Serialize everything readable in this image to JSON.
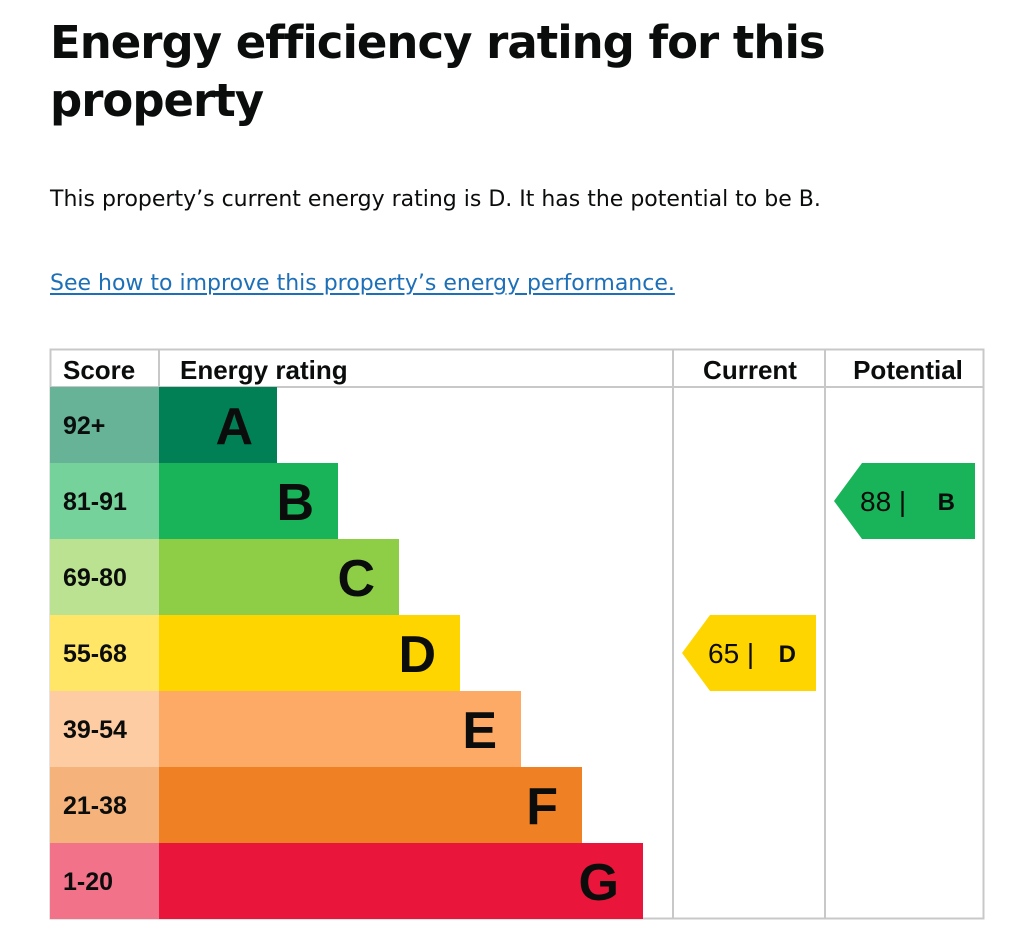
{
  "page": {
    "title": "Energy efficiency rating for this property",
    "intro": "This property’s current energy rating is D. It has the potential to be B.",
    "link_text": "See how to improve this property’s energy performance."
  },
  "colors": {
    "text": "#0b0c0c",
    "link": "#1d70b8",
    "border": "#c8c8c8"
  },
  "chart_data": {
    "type": "bar",
    "title": "Energy efficiency rating",
    "headers": {
      "score": "Score",
      "rating": "Energy rating",
      "current": "Current",
      "potential": "Potential"
    },
    "bands": [
      {
        "letter": "A",
        "score": "92+",
        "color": "#008054",
        "score_bg": "#66b398"
      },
      {
        "letter": "B",
        "score": "81-91",
        "color": "#19b459",
        "score_bg": "#75d29b"
      },
      {
        "letter": "C",
        "score": "69-80",
        "color": "#8dce46",
        "score_bg": "#bbe290"
      },
      {
        "letter": "D",
        "score": "55-68",
        "color": "#ffd500",
        "score_bg": "#ffe666"
      },
      {
        "letter": "E",
        "score": "39-54",
        "color": "#fcaa65",
        "score_bg": "#fdcca3"
      },
      {
        "letter": "F",
        "score": "21-38",
        "color": "#ef8023",
        "score_bg": "#f5b37b"
      },
      {
        "letter": "G",
        "score": "1-20",
        "color": "#e9153b",
        "score_bg": "#f27389"
      }
    ],
    "current": {
      "value": 65,
      "letter": "D",
      "label": "65 |",
      "color": "#ffd500"
    },
    "potential": {
      "value": 88,
      "letter": "B",
      "label": "88 |",
      "color": "#19b459"
    }
  }
}
